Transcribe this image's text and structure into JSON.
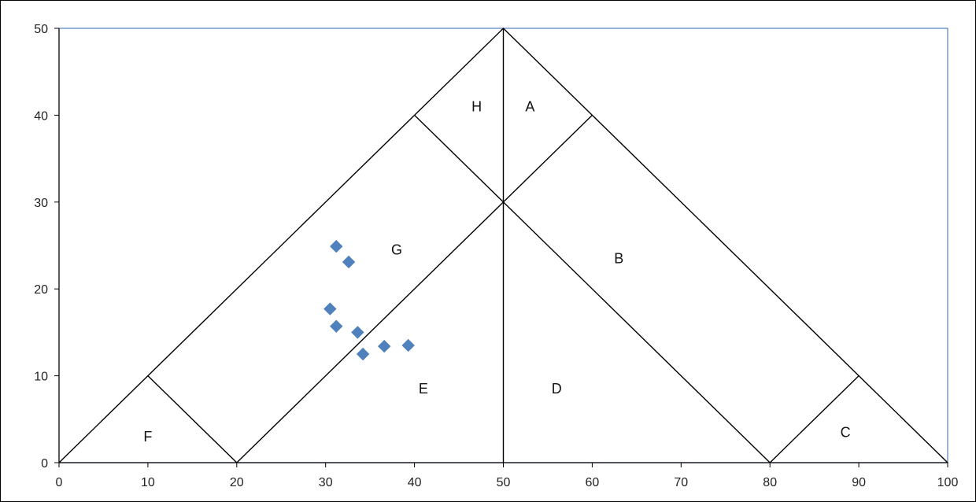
{
  "chart_data": {
    "type": "scatter",
    "title": "",
    "xlabel": "",
    "ylabel": "",
    "xlim": [
      0,
      100
    ],
    "ylim": [
      0,
      50
    ],
    "x_ticks": [
      "0",
      "10",
      "20",
      "30",
      "40",
      "50",
      "60",
      "70",
      "80",
      "90",
      "100"
    ],
    "y_ticks": [
      "0",
      "10",
      "20",
      "30",
      "40",
      "50"
    ],
    "grid": false,
    "colors": {
      "points": "#4f81bd",
      "frame": "#4f81bd",
      "lines": "#000000"
    },
    "points": [
      {
        "x": 31.2,
        "y": 24.9
      },
      {
        "x": 32.6,
        "y": 23.1
      },
      {
        "x": 30.5,
        "y": 17.7
      },
      {
        "x": 31.2,
        "y": 15.7
      },
      {
        "x": 33.6,
        "y": 15.0
      },
      {
        "x": 34.2,
        "y": 12.5
      },
      {
        "x": 36.6,
        "y": 13.4
      },
      {
        "x": 39.3,
        "y": 13.5
      }
    ],
    "boundaries": [
      [
        [
          0,
          0
        ],
        [
          50,
          50
        ],
        [
          100,
          0
        ]
      ],
      [
        [
          20,
          0
        ],
        [
          60,
          40
        ]
      ],
      [
        [
          80,
          0
        ],
        [
          40,
          40
        ]
      ],
      [
        [
          10,
          10
        ],
        [
          20,
          0
        ]
      ],
      [
        [
          80,
          0
        ],
        [
          90,
          10
        ]
      ],
      [
        [
          50,
          0
        ],
        [
          50,
          50
        ]
      ]
    ],
    "regions": [
      {
        "label": "A",
        "x": 53,
        "y": 41
      },
      {
        "label": "B",
        "x": 63,
        "y": 23.5
      },
      {
        "label": "C",
        "x": 88.5,
        "y": 3.5
      },
      {
        "label": "D",
        "x": 56,
        "y": 8.5
      },
      {
        "label": "E",
        "x": 41,
        "y": 8.5
      },
      {
        "label": "F",
        "x": 10,
        "y": 3
      },
      {
        "label": "G",
        "x": 38,
        "y": 24.5
      },
      {
        "label": "H",
        "x": 47,
        "y": 41
      }
    ]
  }
}
